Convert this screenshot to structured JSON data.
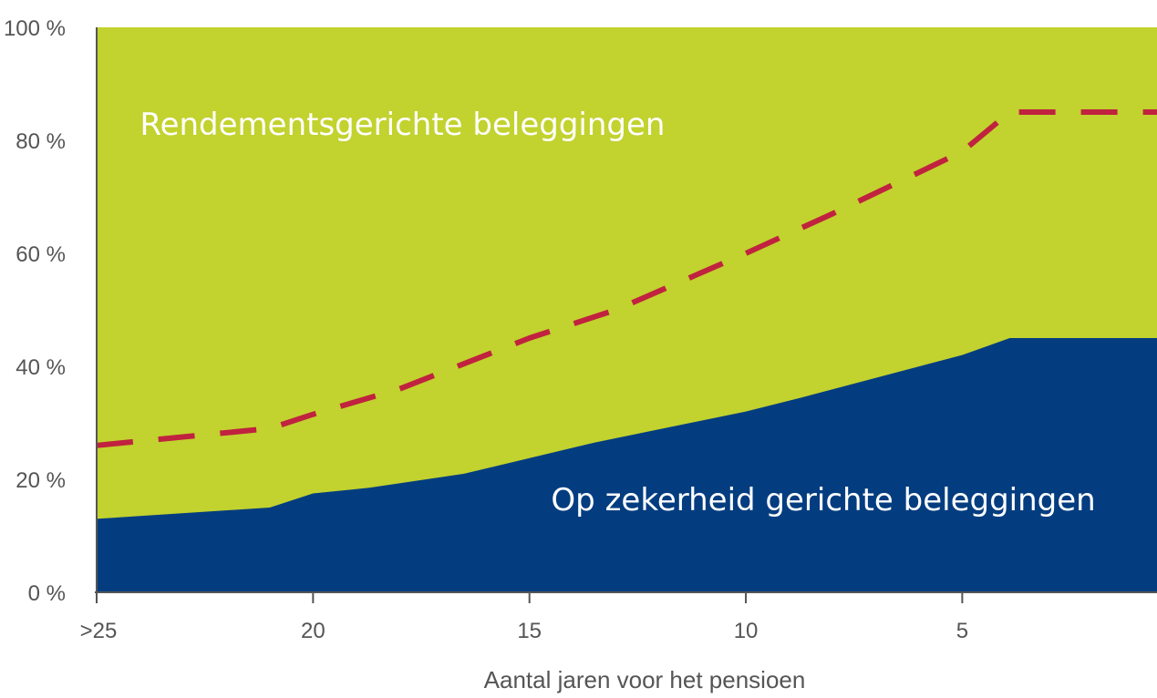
{
  "chart_data": {
    "type": "area",
    "title": "",
    "xlabel": "Aantal jaren voor het pensioen",
    "ylabel": "",
    "x_range": [
      25,
      0.5
    ],
    "ylim": [
      0,
      100
    ],
    "x_ticks": [
      {
        "value": 25,
        "label": ">25"
      },
      {
        "value": 20,
        "label": "20"
      },
      {
        "value": 15,
        "label": "15"
      },
      {
        "value": 10,
        "label": "10"
      },
      {
        "value": 5,
        "label": "5"
      }
    ],
    "y_ticks": [
      {
        "value": 0,
        "label": "0 %"
      },
      {
        "value": 20,
        "label": "20 %"
      },
      {
        "value": 40,
        "label": "40 %"
      },
      {
        "value": 60,
        "label": "60 %"
      },
      {
        "value": 80,
        "label": "80 %"
      },
      {
        "value": 100,
        "label": "100 %"
      }
    ],
    "grid": false,
    "series": [
      {
        "name": "Op zekerheid gerichte beleggingen",
        "color": "#033d80",
        "points": [
          {
            "x": 25,
            "y": 13
          },
          {
            "x": 21,
            "y": 15
          },
          {
            "x": 20,
            "y": 17.5
          },
          {
            "x": 18.7,
            "y": 18.5
          },
          {
            "x": 16.5,
            "y": 21
          },
          {
            "x": 13.5,
            "y": 26.5
          },
          {
            "x": 10,
            "y": 32
          },
          {
            "x": 8.7,
            "y": 34.5
          },
          {
            "x": 5,
            "y": 42
          },
          {
            "x": 3.9,
            "y": 45
          },
          {
            "x": 0.5,
            "y": 45
          }
        ]
      },
      {
        "name": "Rendementsgerichte beleggingen",
        "color": "#c2d22e",
        "fill_to": 100
      },
      {
        "name": "",
        "color": "#c0223f",
        "style": "dashed",
        "points": [
          {
            "x": 25,
            "y": 26
          },
          {
            "x": 21,
            "y": 29
          },
          {
            "x": 20,
            "y": 31.5
          },
          {
            "x": 18,
            "y": 36
          },
          {
            "x": 15,
            "y": 45
          },
          {
            "x": 13,
            "y": 50
          },
          {
            "x": 10,
            "y": 60
          },
          {
            "x": 8,
            "y": 67
          },
          {
            "x": 5,
            "y": 78
          },
          {
            "x": 3.9,
            "y": 85
          },
          {
            "x": 0.5,
            "y": 85
          }
        ]
      }
    ],
    "annotations": [
      {
        "text": "Rendementsgerichte beleggingen",
        "x": 24,
        "y": 81
      },
      {
        "text": "Op zekerheid gerichte beleggingen",
        "x": 14.5,
        "y": 14.5
      }
    ]
  }
}
